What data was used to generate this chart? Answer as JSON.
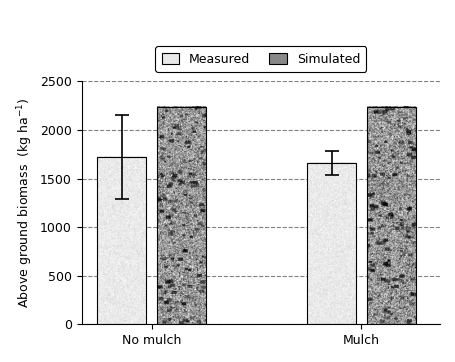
{
  "groups": [
    "No mulch",
    "Mulch"
  ],
  "measured_values": [
    1720,
    1660
  ],
  "measured_errors_up": [
    430,
    120
  ],
  "measured_errors_dn": [
    430,
    120
  ],
  "simulated_values": [
    2240,
    2240
  ],
  "ylim": [
    0,
    2500
  ],
  "yticks": [
    0,
    500,
    1000,
    1500,
    2000,
    2500
  ],
  "legend_labels": [
    "Measured",
    "Simulated"
  ],
  "bar_width": 0.28,
  "group_positions": [
    0.7,
    1.9
  ],
  "xlim": [
    0.3,
    2.35
  ],
  "axis_fontsize": 9,
  "tick_fontsize": 9,
  "legend_fontsize": 9
}
